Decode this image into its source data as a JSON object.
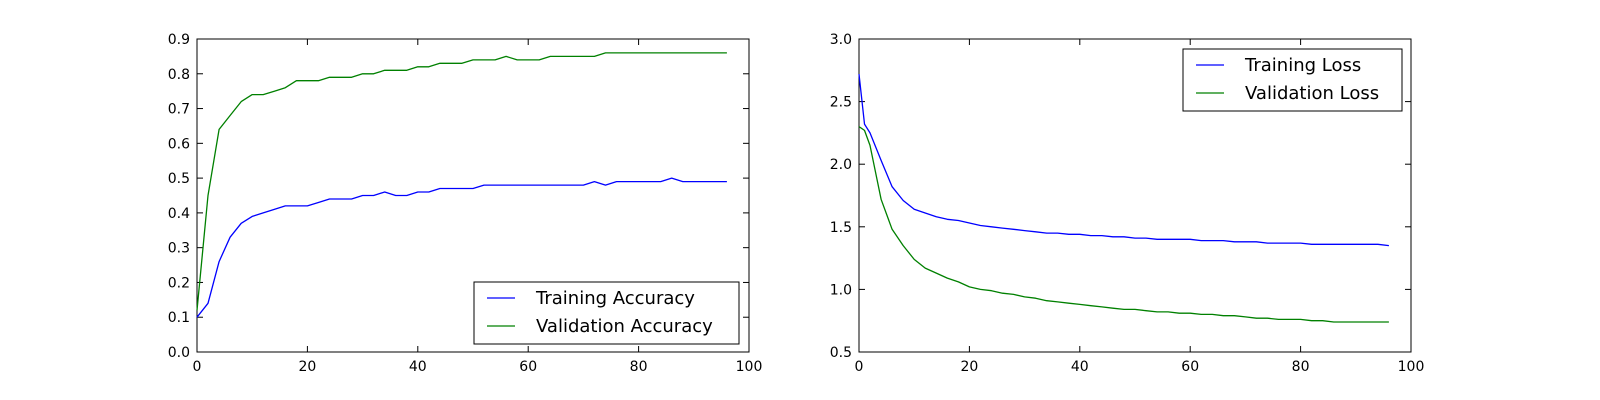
{
  "chart_data": [
    {
      "type": "line",
      "title": "",
      "xlabel": "",
      "ylabel": "",
      "xlim": [
        0,
        100
      ],
      "ylim": [
        0.0,
        0.9
      ],
      "xticks": [
        "0",
        "20",
        "40",
        "60",
        "80",
        "100"
      ],
      "yticks": [
        "0.0",
        "0.1",
        "0.2",
        "0.3",
        "0.4",
        "0.5",
        "0.6",
        "0.7",
        "0.8",
        "0.9"
      ],
      "legend_position": "bottom-right",
      "grid": false,
      "series": [
        {
          "name": "Training Accuracy",
          "color": "#0000ff",
          "x": [
            0,
            2,
            4,
            6,
            8,
            10,
            12,
            14,
            16,
            18,
            20,
            22,
            24,
            26,
            28,
            30,
            32,
            34,
            36,
            38,
            40,
            42,
            44,
            46,
            48,
            50,
            52,
            54,
            56,
            58,
            60,
            62,
            64,
            66,
            68,
            70,
            72,
            74,
            76,
            78,
            80,
            82,
            84,
            86,
            88,
            90,
            92,
            94,
            96
          ],
          "y": [
            0.1,
            0.14,
            0.26,
            0.33,
            0.37,
            0.39,
            0.4,
            0.41,
            0.42,
            0.42,
            0.42,
            0.43,
            0.44,
            0.44,
            0.44,
            0.45,
            0.45,
            0.46,
            0.45,
            0.45,
            0.46,
            0.46,
            0.47,
            0.47,
            0.47,
            0.47,
            0.48,
            0.48,
            0.48,
            0.48,
            0.48,
            0.48,
            0.48,
            0.48,
            0.48,
            0.48,
            0.49,
            0.48,
            0.49,
            0.49,
            0.49,
            0.49,
            0.49,
            0.5,
            0.49,
            0.49,
            0.49,
            0.49,
            0.49
          ]
        },
        {
          "name": "Validation Accuracy",
          "color": "#008000",
          "x": [
            0,
            2,
            4,
            6,
            8,
            10,
            12,
            14,
            16,
            18,
            20,
            22,
            24,
            26,
            28,
            30,
            32,
            34,
            36,
            38,
            40,
            42,
            44,
            46,
            48,
            50,
            52,
            54,
            56,
            58,
            60,
            62,
            64,
            66,
            68,
            70,
            72,
            74,
            76,
            78,
            80,
            82,
            84,
            86,
            88,
            90,
            92,
            94,
            96
          ],
          "y": [
            0.12,
            0.45,
            0.64,
            0.68,
            0.72,
            0.74,
            0.74,
            0.75,
            0.76,
            0.78,
            0.78,
            0.78,
            0.79,
            0.79,
            0.79,
            0.8,
            0.8,
            0.81,
            0.81,
            0.81,
            0.82,
            0.82,
            0.83,
            0.83,
            0.83,
            0.84,
            0.84,
            0.84,
            0.85,
            0.84,
            0.84,
            0.84,
            0.85,
            0.85,
            0.85,
            0.85,
            0.85,
            0.86,
            0.86,
            0.86,
            0.86,
            0.86,
            0.86,
            0.86,
            0.86,
            0.86,
            0.86,
            0.86,
            0.86
          ]
        }
      ]
    },
    {
      "type": "line",
      "title": "",
      "xlabel": "",
      "ylabel": "",
      "xlim": [
        0,
        100
      ],
      "ylim": [
        0.5,
        3.0
      ],
      "xticks": [
        "0",
        "20",
        "40",
        "60",
        "80",
        "100"
      ],
      "yticks": [
        "0.5",
        "1.0",
        "1.5",
        "2.0",
        "2.5",
        "3.0"
      ],
      "legend_position": "top-right",
      "grid": false,
      "series": [
        {
          "name": "Training Loss",
          "color": "#0000ff",
          "x": [
            0,
            1,
            2,
            4,
            6,
            8,
            10,
            12,
            14,
            16,
            18,
            20,
            22,
            24,
            26,
            28,
            30,
            32,
            34,
            36,
            38,
            40,
            42,
            44,
            46,
            48,
            50,
            52,
            54,
            56,
            58,
            60,
            62,
            64,
            66,
            68,
            70,
            72,
            74,
            76,
            78,
            80,
            82,
            84,
            86,
            88,
            90,
            92,
            94,
            96
          ],
          "y": [
            2.72,
            2.32,
            2.25,
            2.03,
            1.82,
            1.71,
            1.64,
            1.61,
            1.58,
            1.56,
            1.55,
            1.53,
            1.51,
            1.5,
            1.49,
            1.48,
            1.47,
            1.46,
            1.45,
            1.45,
            1.44,
            1.44,
            1.43,
            1.43,
            1.42,
            1.42,
            1.41,
            1.41,
            1.4,
            1.4,
            1.4,
            1.4,
            1.39,
            1.39,
            1.39,
            1.38,
            1.38,
            1.38,
            1.37,
            1.37,
            1.37,
            1.37,
            1.36,
            1.36,
            1.36,
            1.36,
            1.36,
            1.36,
            1.36,
            1.35
          ]
        },
        {
          "name": "Validation Loss",
          "color": "#008000",
          "x": [
            0,
            1,
            2,
            4,
            6,
            8,
            10,
            12,
            14,
            16,
            18,
            20,
            22,
            24,
            26,
            28,
            30,
            32,
            34,
            36,
            38,
            40,
            42,
            44,
            46,
            48,
            50,
            52,
            54,
            56,
            58,
            60,
            62,
            64,
            66,
            68,
            70,
            72,
            74,
            76,
            78,
            80,
            82,
            84,
            86,
            88,
            90,
            92,
            94,
            96
          ],
          "y": [
            2.3,
            2.27,
            2.15,
            1.72,
            1.48,
            1.35,
            1.24,
            1.17,
            1.13,
            1.09,
            1.06,
            1.02,
            1.0,
            0.99,
            0.97,
            0.96,
            0.94,
            0.93,
            0.91,
            0.9,
            0.89,
            0.88,
            0.87,
            0.86,
            0.85,
            0.84,
            0.84,
            0.83,
            0.82,
            0.82,
            0.81,
            0.81,
            0.8,
            0.8,
            0.79,
            0.79,
            0.78,
            0.77,
            0.77,
            0.76,
            0.76,
            0.76,
            0.75,
            0.75,
            0.74,
            0.74,
            0.74,
            0.74,
            0.74,
            0.74
          ]
        }
      ]
    }
  ]
}
